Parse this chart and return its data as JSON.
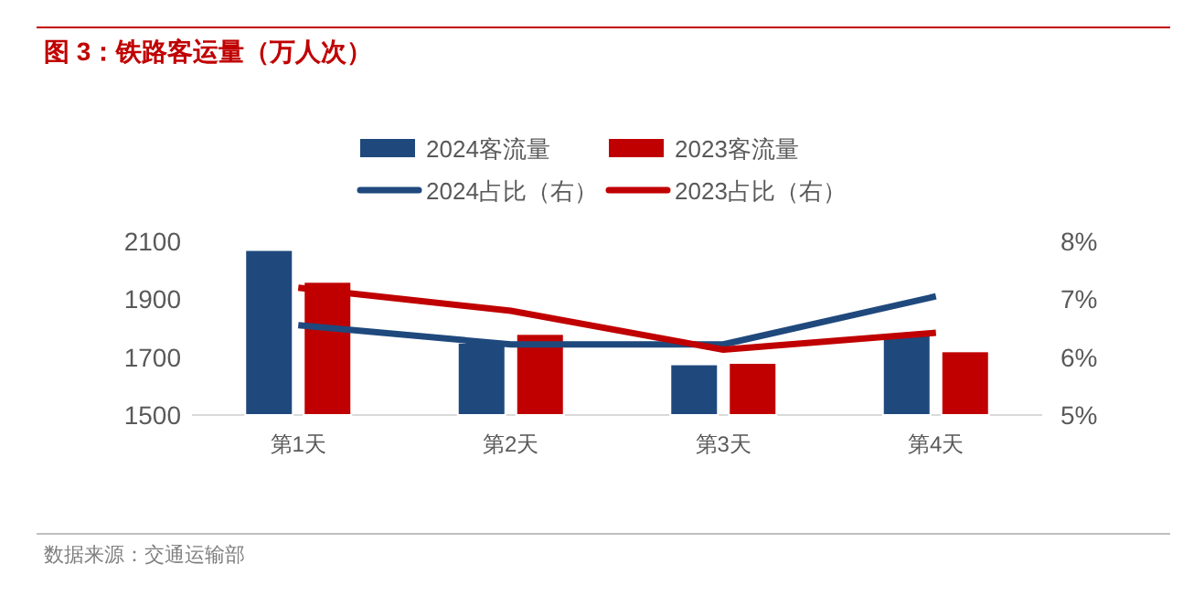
{
  "chart_data": {
    "type": "bar",
    "title": "图 3：铁路客运量（万人次）",
    "categories": [
      "第1天",
      "第2天",
      "第3天",
      "第4天"
    ],
    "series": [
      {
        "name": "2024客流量",
        "color": "#1f497d",
        "values": [
          2070,
          1750,
          1675,
          1780
        ]
      },
      {
        "name": "2023客流量",
        "color": "#c00000",
        "values": [
          1960,
          1780,
          1680,
          1720
        ]
      },
      {
        "name": "2024占比（右）",
        "type": "line",
        "axis": "y2",
        "color": "#1f497d",
        "values": [
          6.55,
          6.22,
          6.22,
          7.05
        ]
      },
      {
        "name": "2023占比（右）",
        "type": "line",
        "axis": "y2",
        "color": "#c00000",
        "values": [
          7.2,
          6.8,
          6.13,
          6.42
        ]
      }
    ],
    "ylim": [
      1500,
      2100
    ],
    "yticks": [
      1500,
      1700,
      1900,
      2100
    ],
    "y2lim": [
      5,
      8
    ],
    "y2ticks": [
      {
        "value": 5,
        "label": "5%"
      },
      {
        "value": 6,
        "label": "6%"
      },
      {
        "value": 7,
        "label": "7%"
      },
      {
        "value": 8,
        "label": "8%"
      }
    ],
    "legend": "top",
    "marker": "none",
    "annotations": [
      "数据来源：交通运输部"
    ]
  }
}
